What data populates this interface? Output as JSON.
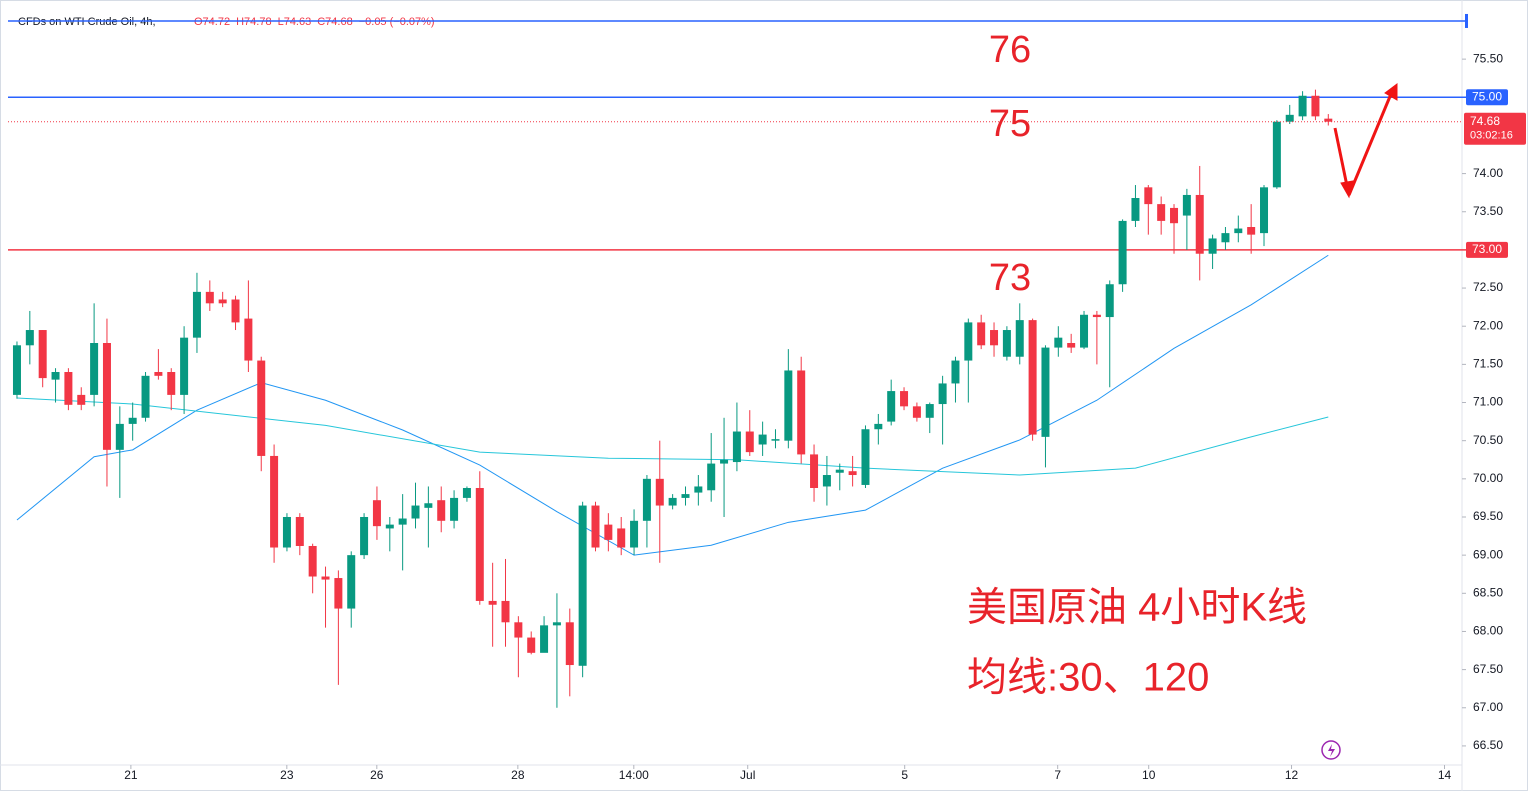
{
  "header": {
    "symbol": "CFDs on WTI Crude Oil, 4h,",
    "ohlc": [
      "O74.72",
      "H74.78",
      "L74.63",
      "C74.68",
      "−0.05 (−0.07%)"
    ]
  },
  "chart_data": {
    "type": "candlestick",
    "up_color": "#089981",
    "down_color": "#f23645",
    "open": [
      71.1,
      71.75,
      71.95,
      71.3,
      71.4,
      71.1,
      71.1,
      71.78,
      70.38,
      70.72,
      70.8,
      71.4,
      71.4,
      71.1,
      71.85,
      72.45,
      72.35,
      72.35,
      72.1,
      71.55,
      70.3,
      69.1,
      69.5,
      69.12,
      68.72,
      68.7,
      68.3,
      69.0,
      69.72,
      69.35,
      69.4,
      69.48,
      69.62,
      69.72,
      69.45,
      69.75,
      69.88,
      68.4,
      68.4,
      68.12,
      67.92,
      67.72,
      68.08,
      68.12,
      67.55,
      69.65,
      69.4,
      69.35,
      69.1,
      69.45,
      70.0,
      69.65,
      69.75,
      69.82,
      69.85,
      70.2,
      70.22,
      70.62,
      70.45,
      70.5,
      70.5,
      71.42,
      70.32,
      69.9,
      70.08,
      70.1,
      69.92,
      70.65,
      70.75,
      71.15,
      70.95,
      70.8,
      70.98,
      71.25,
      71.55,
      72.05,
      71.95,
      71.6,
      71.6,
      72.08,
      70.55,
      71.72,
      71.78,
      71.72,
      72.15,
      72.12,
      72.55,
      73.38,
      73.82,
      73.6,
      73.55,
      73.45,
      73.72,
      72.95,
      73.1,
      73.22,
      73.3,
      73.22,
      73.82,
      74.68,
      74.75,
      75.02,
      74.72
    ],
    "high": [
      71.8,
      72.2,
      71.95,
      71.45,
      71.45,
      71.2,
      72.3,
      72.1,
      70.95,
      71.0,
      71.4,
      71.7,
      71.45,
      72.0,
      72.7,
      72.6,
      72.45,
      72.4,
      72.6,
      71.6,
      70.45,
      69.55,
      69.55,
      69.15,
      68.85,
      68.8,
      69.05,
      69.55,
      69.9,
      69.5,
      69.8,
      69.95,
      69.9,
      69.9,
      69.85,
      69.9,
      70.1,
      68.9,
      68.95,
      68.2,
      68.0,
      68.2,
      68.5,
      68.3,
      69.7,
      69.7,
      69.55,
      69.5,
      69.6,
      70.05,
      70.5,
      69.8,
      69.9,
      70.05,
      70.6,
      70.8,
      71.0,
      70.9,
      70.75,
      70.65,
      71.7,
      71.6,
      70.45,
      70.3,
      70.2,
      70.3,
      70.7,
      70.85,
      71.3,
      71.2,
      71.0,
      71.0,
      71.35,
      71.6,
      72.1,
      72.15,
      72.05,
      72.0,
      72.3,
      72.1,
      71.75,
      72.0,
      71.9,
      72.2,
      72.2,
      72.6,
      73.4,
      73.85,
      73.85,
      73.7,
      73.6,
      73.8,
      74.1,
      73.2,
      73.3,
      73.45,
      73.6,
      73.85,
      74.7,
      74.9,
      75.08,
      75.1,
      74.78
    ],
    "low": [
      71.05,
      71.5,
      71.2,
      71.0,
      70.9,
      70.9,
      70.95,
      69.9,
      69.75,
      70.5,
      70.75,
      71.3,
      70.9,
      70.85,
      71.65,
      72.2,
      72.25,
      71.95,
      71.4,
      70.1,
      68.9,
      69.05,
      69.0,
      68.5,
      68.05,
      67.3,
      68.05,
      68.95,
      69.2,
      69.05,
      68.8,
      69.35,
      69.1,
      69.3,
      69.35,
      69.7,
      68.35,
      67.8,
      67.8,
      67.4,
      67.7,
      67.75,
      67.0,
      67.15,
      67.4,
      69.05,
      69.05,
      69.0,
      69.0,
      69.1,
      68.9,
      69.6,
      69.65,
      69.65,
      69.7,
      69.5,
      70.1,
      70.3,
      70.3,
      70.4,
      70.4,
      70.2,
      69.7,
      69.65,
      69.85,
      69.9,
      69.88,
      70.45,
      70.7,
      70.9,
      70.75,
      70.6,
      70.45,
      71.0,
      71.0,
      71.7,
      71.6,
      71.55,
      71.5,
      70.5,
      70.15,
      71.6,
      71.65,
      71.7,
      71.5,
      71.2,
      72.45,
      73.3,
      73.2,
      73.2,
      72.95,
      73.0,
      72.6,
      72.75,
      73.0,
      73.1,
      72.95,
      73.05,
      73.8,
      74.65,
      74.7,
      74.7,
      74.63
    ],
    "close": [
      71.75,
      71.95,
      71.32,
      71.4,
      70.97,
      70.97,
      71.78,
      70.38,
      70.72,
      70.8,
      71.35,
      71.35,
      71.1,
      71.85,
      72.45,
      72.3,
      72.3,
      72.05,
      71.55,
      70.3,
      69.1,
      69.5,
      69.12,
      68.72,
      68.68,
      68.3,
      69.0,
      69.5,
      69.38,
      69.4,
      69.48,
      69.65,
      69.68,
      69.45,
      69.75,
      69.88,
      68.4,
      68.35,
      68.12,
      67.92,
      67.72,
      68.08,
      68.12,
      67.56,
      69.65,
      69.1,
      69.2,
      69.1,
      69.45,
      70.0,
      69.65,
      69.75,
      69.8,
      69.9,
      70.2,
      70.25,
      70.62,
      70.35,
      70.58,
      70.52,
      71.42,
      70.32,
      69.88,
      70.05,
      70.12,
      70.05,
      70.65,
      70.72,
      71.15,
      70.95,
      70.8,
      70.98,
      71.25,
      71.55,
      72.05,
      71.75,
      71.75,
      71.95,
      72.08,
      70.58,
      71.72,
      71.85,
      71.72,
      72.15,
      72.12,
      72.55,
      73.38,
      73.68,
      73.6,
      73.38,
      73.35,
      73.72,
      72.95,
      73.15,
      73.22,
      73.28,
      73.2,
      73.82,
      74.68,
      74.77,
      75.02,
      74.75,
      74.68
    ],
    "lines": [
      {
        "color": "#2196f3",
        "x": [
          0,
          6,
          9,
          14,
          19,
          24,
          30,
          36,
          42,
          48,
          54,
          60,
          66,
          72,
          78,
          84,
          90,
          96,
          102
        ],
        "values": [
          69.46,
          70.29,
          70.38,
          70.9,
          71.26,
          71.03,
          70.64,
          70.18,
          69.57,
          69.0,
          69.13,
          69.43,
          69.59,
          70.14,
          70.51,
          71.03,
          71.71,
          72.28,
          72.93
        ]
      },
      {
        "color": "#26c6da",
        "x": [
          0,
          9,
          24,
          36,
          46,
          56,
          66,
          78,
          87,
          96,
          102
        ],
        "values": [
          71.06,
          70.98,
          70.7,
          70.35,
          70.27,
          70.25,
          70.14,
          70.05,
          70.14,
          70.55,
          70.81
        ]
      }
    ],
    "hlines": [
      {
        "value": 76,
        "color": "#2962ff"
      },
      {
        "value": 75,
        "color": "#2962ff",
        "label": "75.00"
      },
      {
        "value": 73,
        "color": "#f23645",
        "label": "73.00"
      }
    ],
    "last_price": {
      "value": 74.68,
      "label": "74.68",
      "countdown": "03:02:16",
      "color": "#f23645"
    },
    "xlim": [
      -1.32,
      112.4
    ],
    "ylim": [
      66.25,
      76.17
    ],
    "xticks": [
      {
        "value": 8.86,
        "label": "21"
      },
      {
        "value": 20.99,
        "label": "23"
      },
      {
        "value": 27.99,
        "label": "26"
      },
      {
        "value": 38.96,
        "label": "28"
      },
      {
        "value": 47.98,
        "label": "14:00"
      },
      {
        "value": 56.84,
        "label": "Jul"
      },
      {
        "value": 69.05,
        "label": "5"
      },
      {
        "value": 80.95,
        "label": "7"
      },
      {
        "value": 88.03,
        "label": "10"
      },
      {
        "value": 99.14,
        "label": "12"
      },
      {
        "value": 111.04,
        "label": "14"
      }
    ],
    "yticks": [
      {
        "value": 66.5,
        "label": "66.50"
      },
      {
        "value": 67,
        "label": "67.00"
      },
      {
        "value": 67.5,
        "label": "67.50"
      },
      {
        "value": 68,
        "label": "68.00"
      },
      {
        "value": 68.5,
        "label": "68.50"
      },
      {
        "value": 69,
        "label": "69.00"
      },
      {
        "value": 69.5,
        "label": "69.50"
      },
      {
        "value": 70,
        "label": "70.00"
      },
      {
        "value": 70.5,
        "label": "70.50"
      },
      {
        "value": 71,
        "label": "71.00"
      },
      {
        "value": 71.5,
        "label": "71.50"
      },
      {
        "value": 72,
        "label": "72.00"
      },
      {
        "value": 72.5,
        "label": "72.50"
      },
      {
        "value": 73.5,
        "label": "73.50"
      },
      {
        "value": 74,
        "label": "74.00"
      },
      {
        "value": 75.5,
        "label": "75.50"
      }
    ],
    "grid": false,
    "annotations": [
      "76",
      "75",
      "73",
      "美国原油 4小时K线",
      "均线:30、120"
    ]
  }
}
